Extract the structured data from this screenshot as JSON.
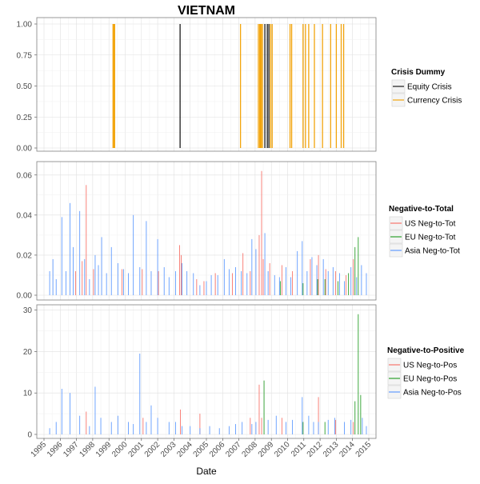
{
  "chart_data": {
    "title": "VIETNAM",
    "xlabel": "Date",
    "x_ticks": [
      "1995",
      "1996",
      "1997",
      "1998",
      "1999",
      "2000",
      "2001",
      "2002",
      "2003",
      "2004",
      "2005",
      "2006",
      "2007",
      "2008",
      "2009",
      "2010",
      "2011",
      "2012",
      "2013",
      "2014",
      "2015"
    ],
    "x_range": [
      1995.0,
      2015.0
    ],
    "grid": true,
    "legend_position": "right",
    "colors": {
      "equity": "#1a1a1a",
      "currency": "#f2a40c",
      "us": "#f8766d",
      "eu": "#2ca02c",
      "asia": "#619cff",
      "grid_major": "#e0e0e0",
      "grid_minor": "#f0f0f0",
      "frame": "#7f7f7f"
    },
    "panels": [
      {
        "type": "bar",
        "ylim": [
          0,
          1.0
        ],
        "y_ticks": [
          "0.00",
          "0.25",
          "0.50",
          "0.75",
          "1.00"
        ],
        "y_tick_values": [
          0,
          0.25,
          0.5,
          0.75,
          1.0
        ],
        "legend": {
          "title": "Crisis Dummy",
          "entries": [
            {
              "label": "Equity Crisis",
              "color": "#1a1a1a"
            },
            {
              "label": "Currency Crisis",
              "color": "#f2a40c"
            }
          ]
        },
        "series": [
          {
            "name": "Equity Crisis",
            "color": "#1a1a1a",
            "x": [
              2003.38,
              2008.6,
              2008.75,
              2008.85
            ],
            "values": [
              1,
              1,
              1,
              1
            ]
          },
          {
            "name": "Currency Crisis",
            "color": "#f2a40c",
            "x": [
              1999.25,
              1999.3,
              1999.35,
              2007.1,
              2008.2,
              2008.28,
              2008.33,
              2008.38,
              2008.45,
              2008.95,
              2009.05,
              2010.15,
              2010.25,
              2010.95,
              2011.1,
              2011.3,
              2011.65,
              2012.15,
              2012.65,
              2013.0,
              2013.3,
              2013.45
            ],
            "values": [
              1,
              1,
              1,
              1,
              1,
              1,
              1,
              1,
              1,
              1,
              1,
              1,
              1,
              1,
              1,
              1,
              1,
              1,
              1,
              1,
              1,
              1
            ]
          }
        ]
      },
      {
        "type": "bar",
        "ylim": [
          0,
          0.0635
        ],
        "y_ticks": [
          "0.00",
          "0.02",
          "0.04",
          "0.06"
        ],
        "y_tick_values": [
          0,
          0.02,
          0.04,
          0.06
        ],
        "legend": {
          "title": "Negative-to-Total",
          "entries": [
            {
              "label": "US Neg-to-Tot",
              "color": "#f8766d"
            },
            {
              "label": "EU Neg-to-Tot",
              "color": "#2ca02c"
            },
            {
              "label": "Asia Neg-to-Tot",
              "color": "#619cff"
            }
          ]
        },
        "series": [
          {
            "name": "US Neg-to-Tot",
            "color": "#f8766d",
            "x": [
              1996.95,
              1997.35,
              1997.6,
              1998.05,
              1999.8,
              2001.05,
              2002.05,
              2003.35,
              2003.45,
              2004.4,
              2004.85,
              2005.55,
              2006.6,
              2007.25,
              2007.7,
              2008.25,
              2008.4,
              2008.5,
              2008.9,
              2009.65,
              2010.3,
              2011.4,
              2011.9,
              2012.35,
              2012.95,
              2013.6,
              2014.05
            ],
            "values": [
              0.012,
              0.017,
              0.055,
              0.013,
              0.013,
              0.013,
              0.012,
              0.025,
              0.02,
              0.008,
              0.007,
              0.011,
              0.011,
              0.021,
              0.012,
              0.03,
              0.062,
              0.018,
              0.016,
              0.015,
              0.012,
              0.018,
              0.02,
              0.013,
              0.012,
              0.01,
              0.018
            ]
          },
          {
            "name": "EU Neg-to-Tot",
            "color": "#2ca02c",
            "x": [
              2009.55,
              2010.95,
              2011.85,
              2012.3,
              2013.1,
              2013.75,
              2014.15,
              2014.35
            ],
            "values": [
              0.007,
              0.006,
              0.008,
              0.008,
              0.007,
              0.011,
              0.024,
              0.029
            ]
          },
          {
            "name": "Asia Neg-to-Tot",
            "color": "#619cff",
            "x": [
              1995.35,
              1995.55,
              1995.75,
              1996.1,
              1996.35,
              1996.6,
              1996.8,
              1997.2,
              1997.5,
              1997.8,
              1998.15,
              1998.35,
              1998.55,
              1998.85,
              1999.15,
              1999.55,
              1999.9,
              2000.2,
              2000.5,
              2000.9,
              2001.3,
              2001.6,
              2002.0,
              2002.4,
              2002.7,
              2003.1,
              2003.5,
              2003.8,
              2004.2,
              2004.6,
              2005.0,
              2005.3,
              2005.7,
              2006.1,
              2006.4,
              2006.8,
              2007.15,
              2007.5,
              2007.8,
              2008.05,
              2008.6,
              2008.8,
              2009.2,
              2009.5,
              2009.9,
              2010.2,
              2010.6,
              2010.9,
              2011.2,
              2011.5,
              2011.8,
              2012.2,
              2012.5,
              2012.8,
              2013.2,
              2013.5,
              2013.9,
              2014.25,
              2014.55,
              2014.85
            ],
            "values": [
              0.012,
              0.018,
              0.008,
              0.039,
              0.012,
              0.046,
              0.024,
              0.042,
              0.018,
              0.008,
              0.02,
              0.015,
              0.029,
              0.011,
              0.024,
              0.016,
              0.013,
              0.011,
              0.04,
              0.014,
              0.037,
              0.012,
              0.028,
              0.014,
              0.009,
              0.012,
              0.016,
              0.012,
              0.011,
              0.005,
              0.007,
              0.01,
              0.01,
              0.018,
              0.013,
              0.014,
              0.012,
              0.011,
              0.028,
              0.023,
              0.031,
              0.012,
              0.01,
              0.009,
              0.014,
              0.009,
              0.022,
              0.027,
              0.012,
              0.019,
              0.015,
              0.018,
              0.012,
              0.014,
              0.011,
              0.007,
              0.014,
              0.009,
              0.015,
              0.011
            ]
          }
        ]
      },
      {
        "type": "bar",
        "ylim": [
          0,
          30.5
        ],
        "y_ticks": [
          "0",
          "10",
          "20",
          "30"
        ],
        "y_tick_values": [
          0,
          10,
          20,
          30
        ],
        "legend": {
          "title": "Negative-to-Positive",
          "entries": [
            {
              "label": "US Neg-to-Pos",
              "color": "#f8766d"
            },
            {
              "label": "EU Neg-to-Pos",
              "color": "#2ca02c"
            },
            {
              "label": "Asia Neg-to-Pos",
              "color": "#619cff"
            }
          ]
        },
        "series": [
          {
            "name": "US Neg-to-Pos",
            "color": "#f8766d",
            "x": [
              1997.6,
              2001.1,
              2003.4,
              2004.6,
              2007.7,
              2008.25,
              2008.4,
              2009.65,
              2011.9,
              2012.95,
              2014.05
            ],
            "values": [
              5.5,
              4,
              6,
              5,
              4,
              12,
              4,
              4,
              9,
              3.5,
              3
            ]
          },
          {
            "name": "EU Neg-to-Pos",
            "color": "#2ca02c",
            "x": [
              2008.55,
              2010.95,
              2012.3,
              2014.15,
              2014.35,
              2014.5
            ],
            "values": [
              13,
              3,
              3,
              8,
              29,
              9.5
            ]
          },
          {
            "name": "Asia Neg-to-Pos",
            "color": "#619cff",
            "x": [
              1995.35,
              1995.75,
              1996.1,
              1996.6,
              1997.2,
              1997.8,
              1998.15,
              1998.5,
              1999.15,
              1999.55,
              2000.2,
              2000.5,
              2000.9,
              2001.3,
              2001.6,
              2002.0,
              2002.7,
              2003.1,
              2003.5,
              2004.0,
              2004.6,
              2005.2,
              2005.8,
              2006.4,
              2006.8,
              2007.2,
              2007.8,
              2008.05,
              2008.8,
              2009.3,
              2009.9,
              2010.3,
              2010.9,
              2011.3,
              2011.6,
              2011.9,
              2012.5,
              2012.9,
              2013.5,
              2013.9,
              2014.6,
              2014.85
            ],
            "values": [
              1.5,
              3,
              11,
              10,
              4.5,
              2,
              11.5,
              4,
              3,
              4.5,
              3,
              2.5,
              19.5,
              3,
              7,
              4,
              3,
              3,
              2,
              2,
              1.5,
              2,
              1.5,
              2,
              2.5,
              3,
              2.5,
              3,
              3.5,
              4.5,
              3,
              3.5,
              9,
              4.5,
              3,
              3,
              3.5,
              4,
              3,
              3.5,
              4,
              2
            ]
          }
        ]
      }
    ]
  }
}
